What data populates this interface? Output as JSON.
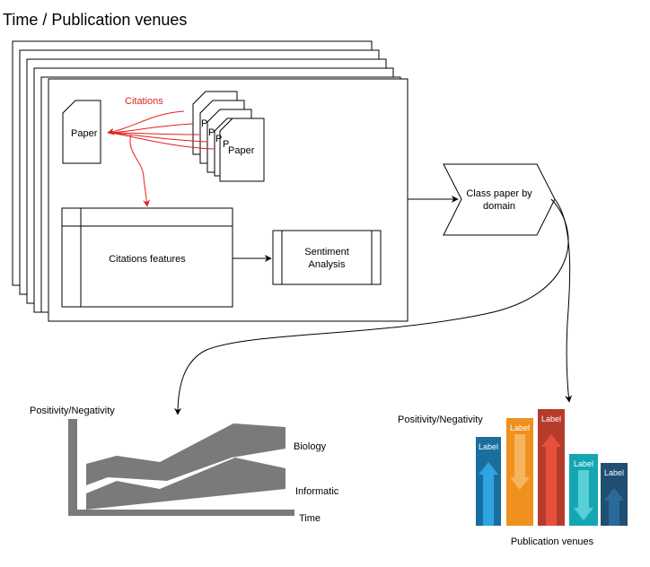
{
  "title": "Time / Publication venues",
  "papers": {
    "main_paper": "Paper",
    "citing_paper_labels": [
      "P",
      "P",
      "P",
      "P",
      "Paper"
    ]
  },
  "citations_label": "Citations",
  "citations_features": "Citations features",
  "sentiment": {
    "line1": "Sentiment",
    "line2": "Analysis"
  },
  "class_paper": {
    "line1": "Class paper by",
    "line2": "domain"
  },
  "area_chart": {
    "ylabel": "Positivity/Negativity",
    "series": [
      "Biology",
      "Informatic"
    ],
    "xlabel": "Time"
  },
  "bar_chart": {
    "ylabel": "Positivity/Negativity",
    "xlabel": "Publication venues",
    "bars": [
      {
        "label": "Label",
        "color": "#1a6e9e",
        "arrow_color": "#2ea5e0",
        "direction": "up"
      },
      {
        "label": "Label",
        "color": "#f0901e",
        "arrow_color": "#f6b460",
        "direction": "down"
      },
      {
        "label": "Label",
        "color": "#b53c2b",
        "arrow_color": "#e8503e",
        "direction": "up"
      },
      {
        "label": "Label",
        "color": "#14a7b3",
        "arrow_color": "#58cfd6",
        "direction": "down"
      },
      {
        "label": "Label",
        "color": "#1f4f72",
        "arrow_color": "#2b6a98",
        "direction": "up"
      }
    ]
  },
  "colors": {
    "citations": "#e02020",
    "stroke": "#000000",
    "area_fill": "#7a7a7a"
  }
}
